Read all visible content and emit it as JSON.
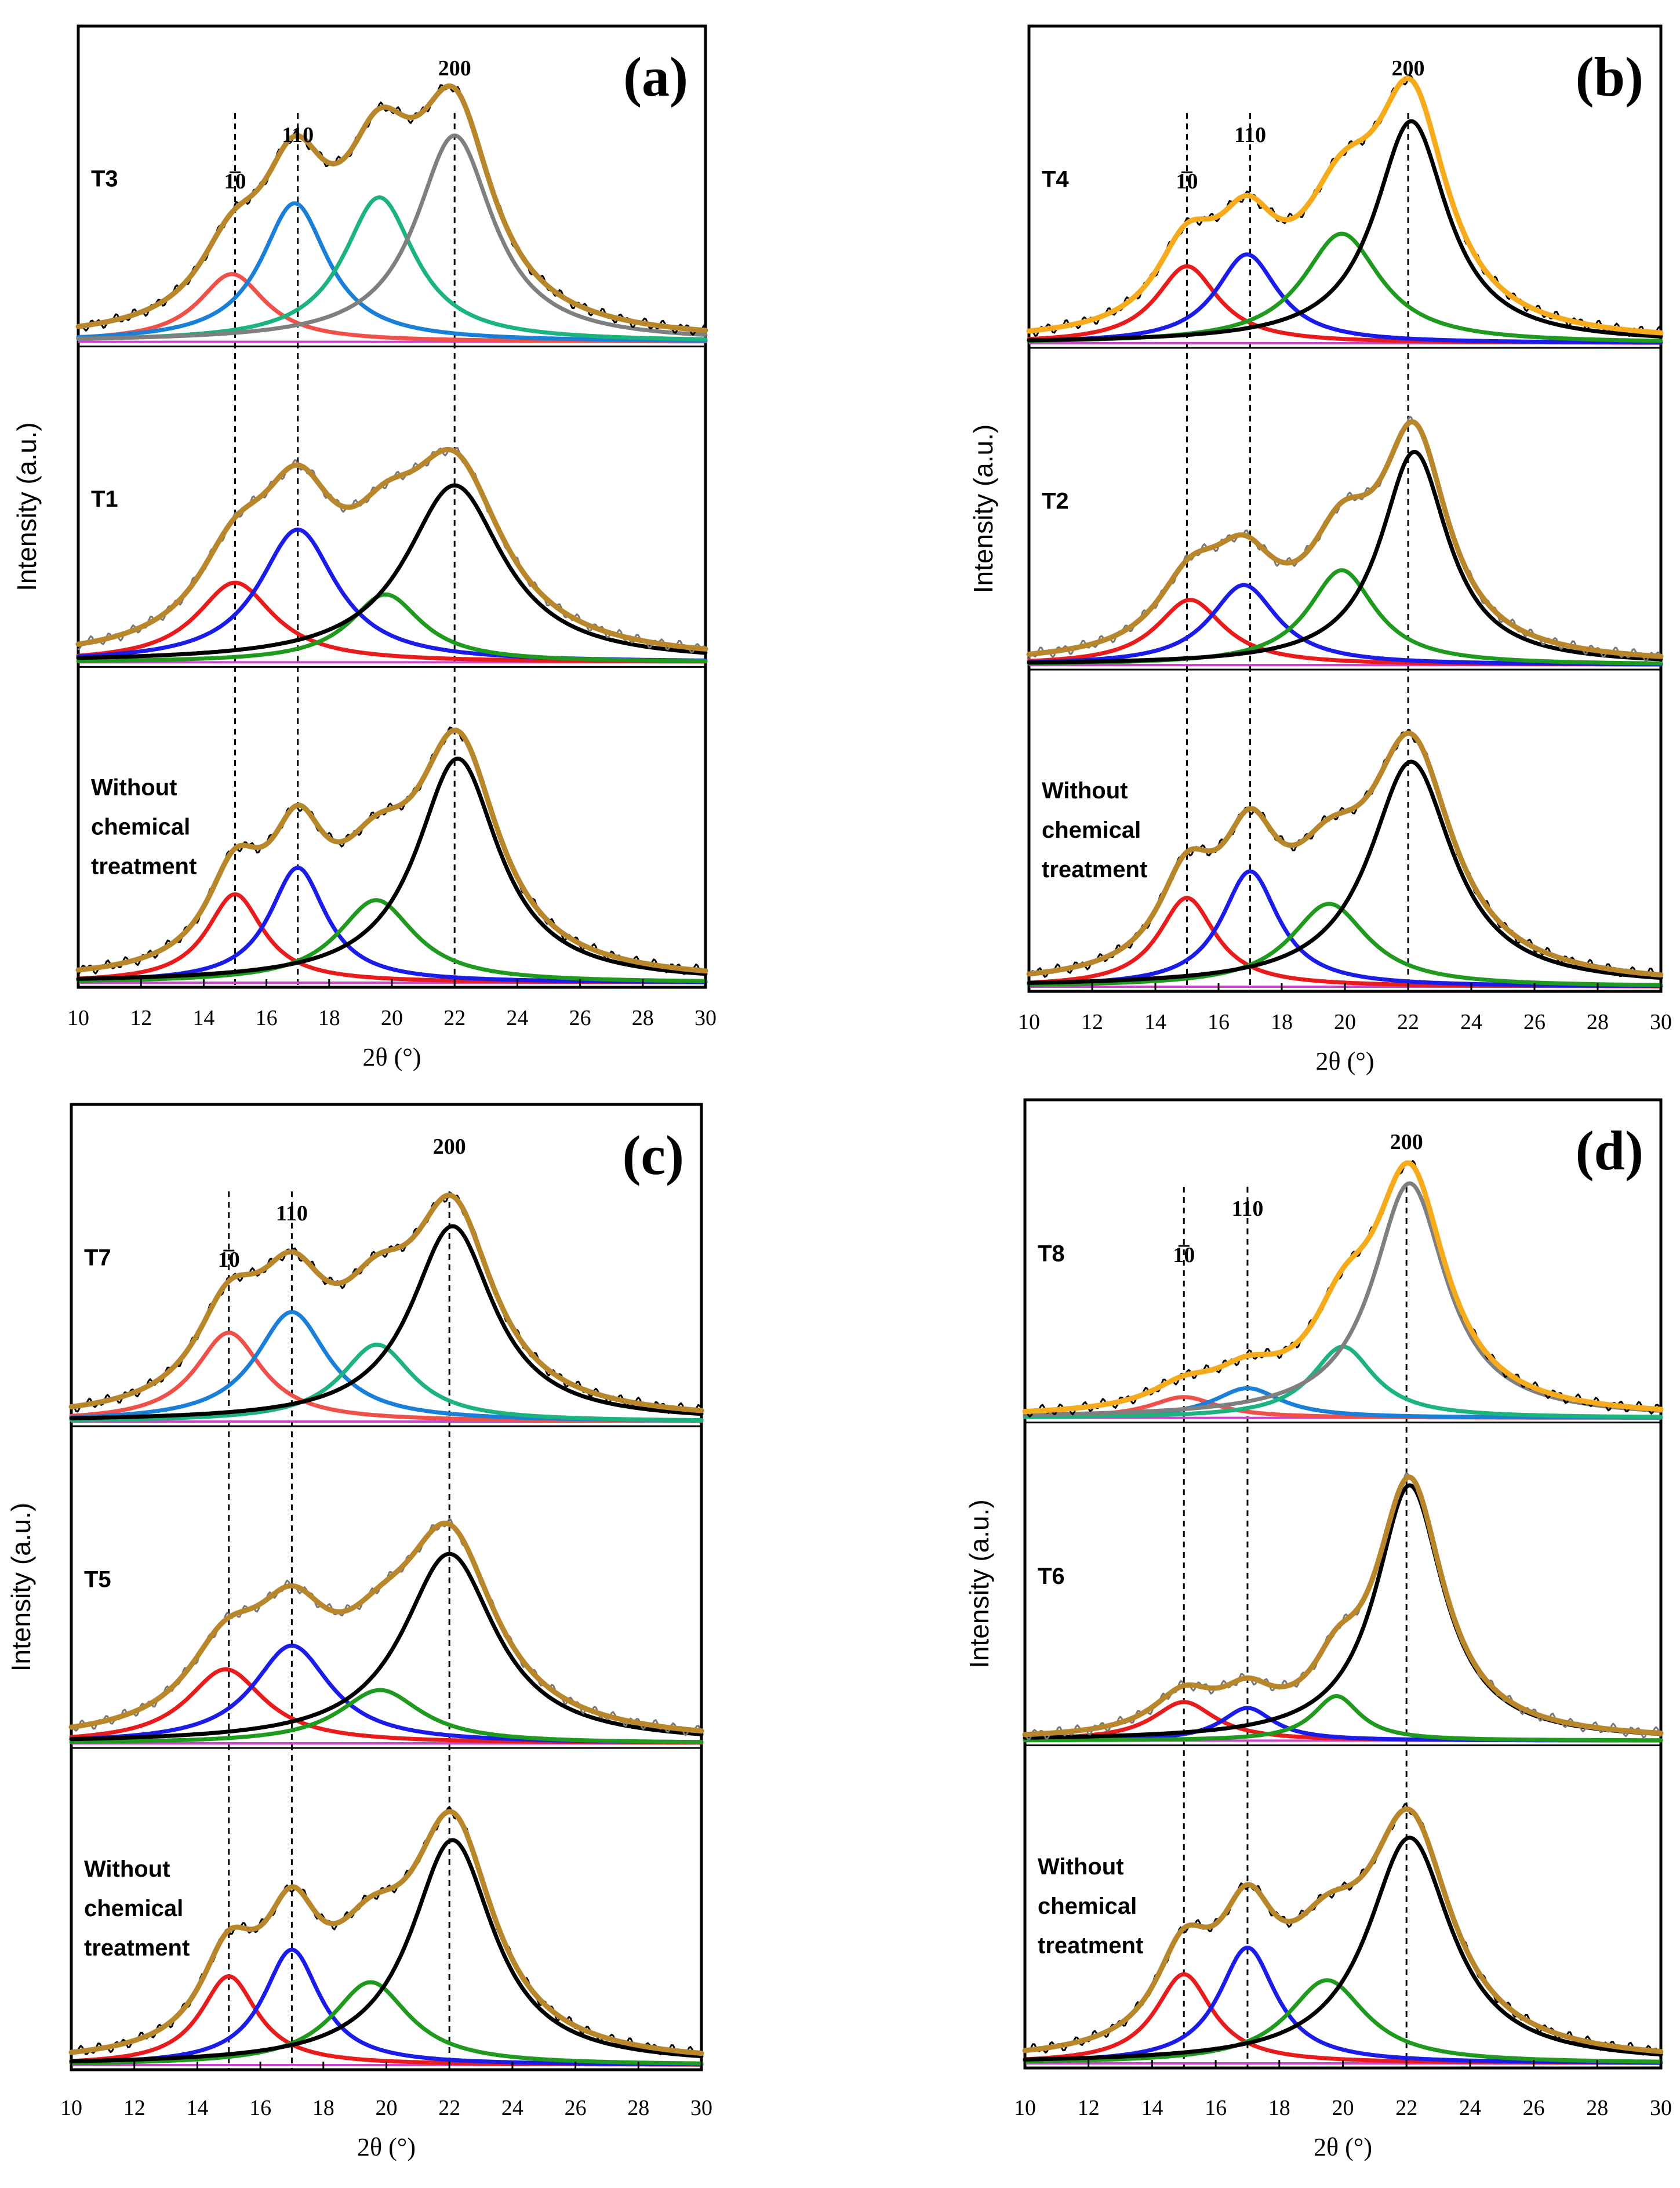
{
  "chart_data": [
    {
      "type": "line",
      "panel": "(a)",
      "xlabel": "2θ (°)",
      "ylabel": "Intensity (a.u.)",
      "xlim": [
        10,
        30
      ],
      "x_ticks": [
        "10",
        "12",
        "14",
        "16",
        "18",
        "20",
        "22",
        "24",
        "26",
        "28",
        "30"
      ],
      "peak_labels": [
        {
          "label": "1̅0",
          "x": 15
        },
        {
          "label": "110",
          "x": 17
        },
        {
          "label": "200",
          "x": 22
        }
      ],
      "samples": [
        {
          "name": "T3",
          "fit_color": "#b8862b",
          "peaks": [
            {
              "label": "1̅0",
              "center": 14.9,
              "height": 0.23,
              "fwhm": 2.6,
              "color": "#f0504a"
            },
            {
              "label": "110",
              "center": 16.9,
              "height": 0.47,
              "fwhm": 2.6,
              "color": "#1a7fd6"
            },
            {
              "label": "",
              "center": 19.6,
              "height": 0.49,
              "fwhm": 2.8,
              "color": "#1db37c"
            },
            {
              "label": "200",
              "center": 22.0,
              "height": 0.7,
              "fwhm": 3.0,
              "color": "#7f7f7f"
            }
          ]
        },
        {
          "name": "T1",
          "fit_color": "#b8862b",
          "peaks": [
            {
              "label": "1̅0",
              "center": 15.0,
              "height": 0.27,
              "fwhm": 3.0,
              "color": "#e81c1c"
            },
            {
              "label": "110",
              "center": 17.0,
              "height": 0.45,
              "fwhm": 3.0,
              "color": "#1c1ce8"
            },
            {
              "label": "",
              "center": 19.8,
              "height": 0.23,
              "fwhm": 2.8,
              "color": "#1f9a1f"
            },
            {
              "label": "200",
              "center": 22.0,
              "height": 0.6,
              "fwhm": 3.8,
              "color": "#000000"
            }
          ]
        },
        {
          "name": "Without\nchemical\ntreatment",
          "fit_color": "#b8862b",
          "peaks": [
            {
              "label": "1̅0",
              "center": 15.0,
              "height": 0.3,
              "fwhm": 2.2,
              "color": "#e81c1c"
            },
            {
              "label": "110",
              "center": 17.0,
              "height": 0.39,
              "fwhm": 2.2,
              "color": "#1c1ce8"
            },
            {
              "label": "",
              "center": 19.5,
              "height": 0.28,
              "fwhm": 3.0,
              "color": "#1f9a1f"
            },
            {
              "label": "200",
              "center": 22.1,
              "height": 0.76,
              "fwhm": 3.2,
              "color": "#000000"
            }
          ]
        }
      ]
    },
    {
      "type": "line",
      "panel": "(b)",
      "xlabel": "2θ (°)",
      "ylabel": "Intensity (a.u.)",
      "xlim": [
        10,
        30
      ],
      "x_ticks": [
        "10",
        "12",
        "14",
        "16",
        "18",
        "20",
        "22",
        "24",
        "26",
        "28",
        "30"
      ],
      "peak_labels": [
        {
          "label": "1̅0",
          "x": 15
        },
        {
          "label": "110",
          "x": 17
        },
        {
          "label": "200",
          "x": 22
        }
      ],
      "samples": [
        {
          "name": "T4",
          "fit_color": "#f5ab1c",
          "peaks": [
            {
              "label": "1̅0",
              "center": 15.0,
              "height": 0.26,
              "fwhm": 2.4,
              "color": "#e81c1c"
            },
            {
              "label": "110",
              "center": 16.9,
              "height": 0.3,
              "fwhm": 2.4,
              "color": "#1c1ce8"
            },
            {
              "label": "",
              "center": 19.9,
              "height": 0.37,
              "fwhm": 3.0,
              "color": "#1f9a1f"
            },
            {
              "label": "200",
              "center": 22.1,
              "height": 0.75,
              "fwhm": 2.8,
              "color": "#000000"
            }
          ]
        },
        {
          "name": "T2",
          "fit_color": "#b8862b",
          "peaks": [
            {
              "label": "1̅0",
              "center": 15.1,
              "height": 0.22,
              "fwhm": 2.6,
              "color": "#e81c1c"
            },
            {
              "label": "110",
              "center": 16.8,
              "height": 0.27,
              "fwhm": 2.6,
              "color": "#1c1ce8"
            },
            {
              "label": "",
              "center": 19.9,
              "height": 0.32,
              "fwhm": 2.6,
              "color": "#1f9a1f"
            },
            {
              "label": "200",
              "center": 22.2,
              "height": 0.72,
              "fwhm": 2.6,
              "color": "#000000"
            }
          ]
        },
        {
          "name": "Without\nchemical\ntreatment",
          "fit_color": "#b8862b",
          "peaks": [
            {
              "label": "1̅0",
              "center": 15.0,
              "height": 0.3,
              "fwhm": 2.2,
              "color": "#e81c1c"
            },
            {
              "label": "110",
              "center": 17.0,
              "height": 0.39,
              "fwhm": 2.2,
              "color": "#1c1ce8"
            },
            {
              "label": "",
              "center": 19.5,
              "height": 0.28,
              "fwhm": 3.0,
              "color": "#1f9a1f"
            },
            {
              "label": "200",
              "center": 22.1,
              "height": 0.76,
              "fwhm": 3.2,
              "color": "#000000"
            }
          ]
        }
      ]
    },
    {
      "type": "line",
      "panel": "(c)",
      "xlabel": "2θ (°)",
      "ylabel": "Intensity (a.u.)",
      "xlim": [
        10,
        30
      ],
      "x_ticks": [
        "10",
        "12",
        "14",
        "16",
        "18",
        "20",
        "22",
        "24",
        "26",
        "28",
        "30"
      ],
      "peak_labels": [
        {
          "label": "1̅0",
          "x": 15
        },
        {
          "label": "110",
          "x": 17
        },
        {
          "label": "200",
          "x": 22
        }
      ],
      "samples": [
        {
          "name": "T7",
          "fit_color": "#b8862b",
          "peaks": [
            {
              "label": "1̅0",
              "center": 15.0,
              "height": 0.3,
              "fwhm": 2.6,
              "color": "#f0504a"
            },
            {
              "label": "110",
              "center": 17.0,
              "height": 0.37,
              "fwhm": 2.8,
              "color": "#1a7fd6"
            },
            {
              "label": "",
              "center": 19.7,
              "height": 0.26,
              "fwhm": 2.8,
              "color": "#1db37c"
            },
            {
              "label": "200",
              "center": 22.1,
              "height": 0.66,
              "fwhm": 3.2,
              "color": "#000000"
            }
          ]
        },
        {
          "name": "T5",
          "fit_color": "#b8862b",
          "peaks": [
            {
              "label": "1̅0",
              "center": 14.9,
              "height": 0.25,
              "fwhm": 3.0,
              "color": "#e81c1c"
            },
            {
              "label": "110",
              "center": 17.0,
              "height": 0.33,
              "fwhm": 3.0,
              "color": "#1c1ce8"
            },
            {
              "label": "",
              "center": 19.8,
              "height": 0.18,
              "fwhm": 3.2,
              "color": "#1f9a1f"
            },
            {
              "label": "200",
              "center": 22.0,
              "height": 0.64,
              "fwhm": 3.6,
              "color": "#000000"
            }
          ]
        },
        {
          "name": "Without\nchemical\ntreatment",
          "fit_color": "#b8862b",
          "peaks": [
            {
              "label": "1̅0",
              "center": 15.0,
              "height": 0.3,
              "fwhm": 2.2,
              "color": "#e81c1c"
            },
            {
              "label": "110",
              "center": 17.0,
              "height": 0.39,
              "fwhm": 2.2,
              "color": "#1c1ce8"
            },
            {
              "label": "",
              "center": 19.5,
              "height": 0.28,
              "fwhm": 3.0,
              "color": "#1f9a1f"
            },
            {
              "label": "200",
              "center": 22.1,
              "height": 0.76,
              "fwhm": 3.2,
              "color": "#000000"
            }
          ]
        }
      ]
    },
    {
      "type": "line",
      "panel": "(d)",
      "xlabel": "2θ (°)",
      "ylabel": "Intensity (a.u.)",
      "xlim": [
        10,
        30
      ],
      "x_ticks": [
        "10",
        "12",
        "14",
        "16",
        "18",
        "20",
        "22",
        "24",
        "26",
        "28",
        "30"
      ],
      "peak_labels": [
        {
          "label": "1̅0",
          "x": 15
        },
        {
          "label": "110",
          "x": 17
        },
        {
          "label": "200",
          "x": 22
        }
      ],
      "samples": [
        {
          "name": "T8",
          "fit_color": "#f5ab1c",
          "peaks": [
            {
              "label": "1̅0",
              "center": 15.0,
              "height": 0.07,
              "fwhm": 2.6,
              "color": "#f0504a"
            },
            {
              "label": "110",
              "center": 17.0,
              "height": 0.1,
              "fwhm": 2.6,
              "color": "#1a7fd6"
            },
            {
              "label": "",
              "center": 20.0,
              "height": 0.24,
              "fwhm": 2.4,
              "color": "#1db37c"
            },
            {
              "label": "200",
              "center": 22.1,
              "height": 0.79,
              "fwhm": 2.8,
              "color": "#7f7f7f"
            }
          ]
        },
        {
          "name": "T6",
          "fit_color": "#b8862b",
          "peaks": [
            {
              "label": "1̅0",
              "center": 15.0,
              "height": 0.13,
              "fwhm": 2.4,
              "color": "#e81c1c"
            },
            {
              "label": "110",
              "center": 17.0,
              "height": 0.11,
              "fwhm": 2.0,
              "color": "#1c1ce8"
            },
            {
              "label": "",
              "center": 19.8,
              "height": 0.15,
              "fwhm": 1.8,
              "color": "#1f9a1f"
            },
            {
              "label": "200",
              "center": 22.1,
              "height": 0.86,
              "fwhm": 2.6,
              "color": "#000000"
            }
          ]
        },
        {
          "name": "Without\nchemical\ntreatment",
          "fit_color": "#b8862b",
          "peaks": [
            {
              "label": "1̅0",
              "center": 15.0,
              "height": 0.3,
              "fwhm": 2.2,
              "color": "#e81c1c"
            },
            {
              "label": "110",
              "center": 17.0,
              "height": 0.39,
              "fwhm": 2.2,
              "color": "#1c1ce8"
            },
            {
              "label": "",
              "center": 19.5,
              "height": 0.28,
              "fwhm": 3.0,
              "color": "#1f9a1f"
            },
            {
              "label": "200",
              "center": 22.1,
              "height": 0.76,
              "fwhm": 3.2,
              "color": "#000000"
            }
          ]
        }
      ]
    }
  ]
}
